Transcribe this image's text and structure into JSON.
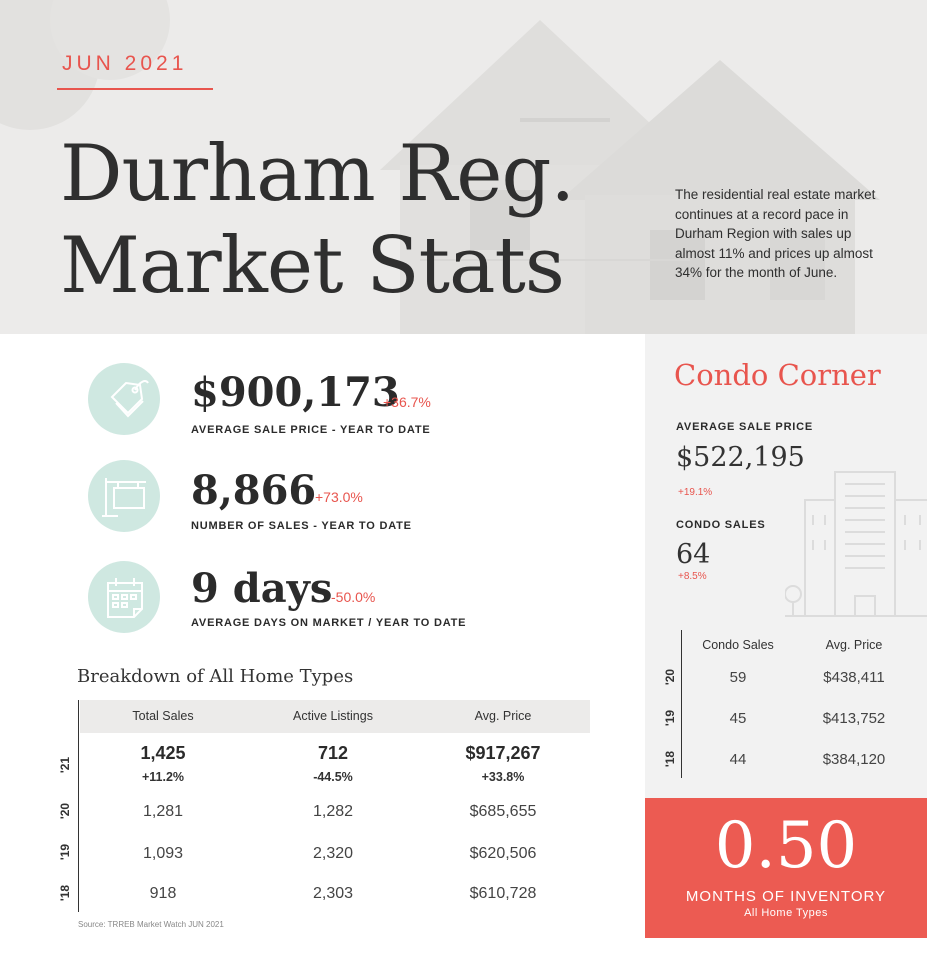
{
  "header": {
    "month": "JUN 2021",
    "title_line1": "Durham Reg.",
    "title_line2": "Market Stats",
    "intro": "The residential real estate market continues at a record pace in Durham Region with sales up almost 11% and prices up almost 34% for the month of June."
  },
  "stats": [
    {
      "icon": "price-tag-icon",
      "value": "$900,173",
      "change": "+36.7%",
      "label": "AVERAGE SALE PRICE - YEAR TO DATE"
    },
    {
      "icon": "for-sale-sign-icon",
      "value": "8,866",
      "change": "+73.0%",
      "label": "NUMBER OF SALES - YEAR TO DATE"
    },
    {
      "icon": "calendar-icon",
      "value": "9 days",
      "change": "-50.0%",
      "label": "AVERAGE DAYS ON MARKET / YEAR TO DATE"
    }
  ],
  "breakdown": {
    "title": "Breakdown of All Home Types",
    "headers": [
      "Total Sales",
      "Active Listings",
      "Avg. Price"
    ],
    "rows": [
      {
        "year": "'21",
        "values": [
          "1,425",
          "712",
          "$917,267"
        ],
        "changes": [
          "+11.2%",
          "-44.5%",
          "+33.8%"
        ]
      },
      {
        "year": "'20",
        "values": [
          "1,281",
          "1,282",
          "$685,655"
        ]
      },
      {
        "year": "'19",
        "values": [
          "1,093",
          "2,320",
          "$620,506"
        ]
      },
      {
        "year": "'18",
        "values": [
          "918",
          "2,303",
          "$610,728"
        ]
      }
    ],
    "source": "Source: TRREB Market Watch JUN 2021"
  },
  "condo": {
    "title": "Condo Corner",
    "avg_price_label": "AVERAGE SALE PRICE",
    "avg_price": "$522,195",
    "avg_price_change": "+19.1%",
    "sales_label": "CONDO SALES",
    "sales": "64",
    "sales_change": "+8.5%",
    "headers": [
      "Condo Sales",
      "Avg. Price"
    ],
    "rows": [
      {
        "year": "'20",
        "values": [
          "59",
          "$438,411"
        ]
      },
      {
        "year": "'19",
        "values": [
          "45",
          "$413,752"
        ]
      },
      {
        "year": "'18",
        "values": [
          "44",
          "$384,120"
        ]
      }
    ]
  },
  "inventory": {
    "value": "0.50",
    "label": "MONTHS OF INVENTORY",
    "sublabel": "All Home Types"
  },
  "colors": {
    "accent": "#e8554e",
    "icon_circle": "#cfe8e1",
    "panel": "#f2f2f2",
    "inventory_bg": "#ec5b52"
  }
}
